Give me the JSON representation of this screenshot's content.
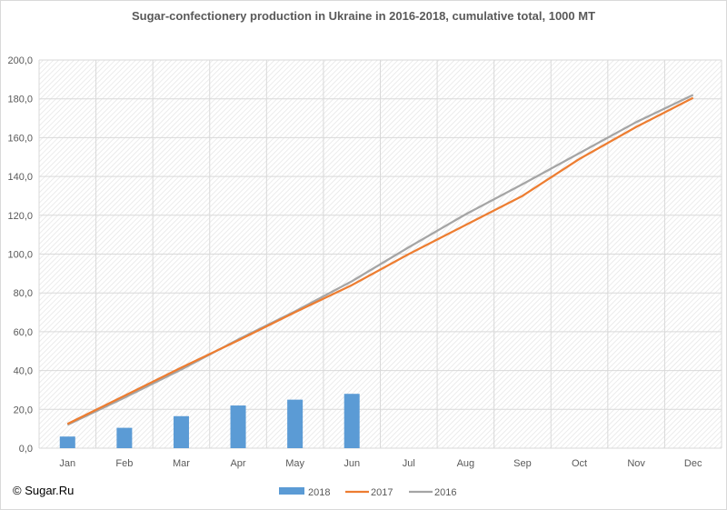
{
  "chart_data": {
    "type": "bar+line",
    "title": "Sugar-confectionery production in Ukraine in 2016-2018,  cumulative total, 1000 MT",
    "categories": [
      "Jan",
      "Feb",
      "Mar",
      "Apr",
      "May",
      "Jun",
      "Jul",
      "Aug",
      "Sep",
      "Oct",
      "Nov",
      "Dec"
    ],
    "ylim": [
      0,
      200
    ],
    "yticks": [
      "0,0",
      "20,0",
      "40,0",
      "60,0",
      "80,0",
      "100,0",
      "120,0",
      "140,0",
      "160,0",
      "180,0",
      "200,0"
    ],
    "ytick_values": [
      0,
      20,
      40,
      60,
      80,
      100,
      120,
      140,
      160,
      180,
      200
    ],
    "grid": true,
    "legend_position": "bottom",
    "series": [
      {
        "name": "2018",
        "kind": "bar",
        "color": "#5b9bd5",
        "values": [
          6,
          10.5,
          16.5,
          22,
          25,
          28,
          null,
          null,
          null,
          null,
          null,
          null
        ]
      },
      {
        "name": "2017",
        "kind": "line",
        "color": "#ed7d31",
        "values": [
          12.5,
          27,
          41.5,
          55.5,
          70,
          84,
          100,
          115,
          130,
          149,
          165.5,
          180.5
        ]
      },
      {
        "name": "2016",
        "kind": "line",
        "color": "#a5a5a5",
        "values": [
          12,
          26,
          40.5,
          56,
          70.5,
          86,
          103.5,
          120.5,
          136,
          152,
          168,
          182
        ]
      }
    ]
  },
  "copyright": "© Sugar.Ru"
}
